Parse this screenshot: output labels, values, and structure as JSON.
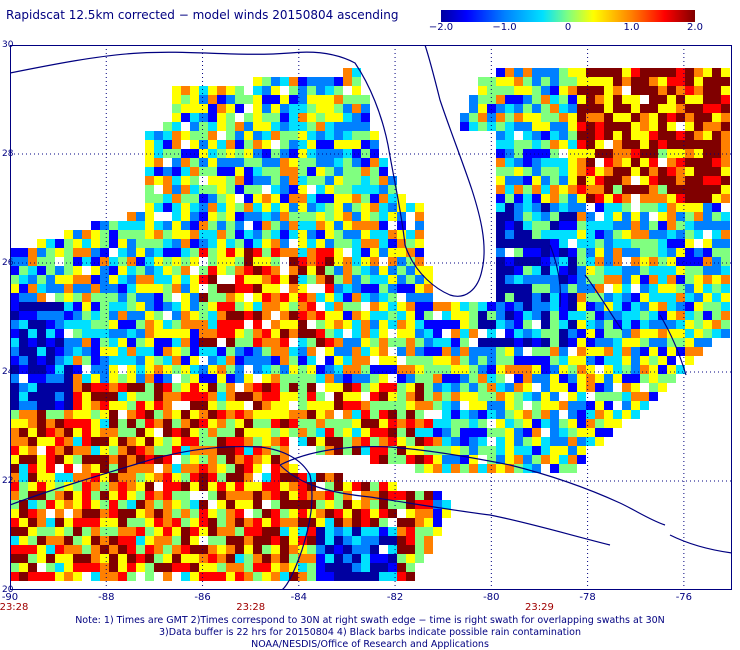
{
  "title": "Rapidscat 12.5km corrected − model winds 20150804 ascending",
  "colorbar": {
    "ticks": [
      "−2.0",
      "−1.0",
      "0",
      "1.0",
      "2.0"
    ],
    "tick_values": [
      -2.0,
      -1.0,
      0,
      1.0,
      2.0
    ],
    "range": [
      -2.0,
      2.0
    ],
    "colors": [
      "#0000a0",
      "#0000ff",
      "#0080ff",
      "#00e0ff",
      "#80ff80",
      "#ffff00",
      "#ff8000",
      "#ff0000",
      "#800000"
    ]
  },
  "axes": {
    "lon_ticks": [
      "-90",
      "-88",
      "-86",
      "-84",
      "-82",
      "-80",
      "-78",
      "-76"
    ],
    "lon_values": [
      -90,
      -88,
      -86,
      -84,
      -82,
      -80,
      -78,
      -76
    ],
    "lat_ticks": [
      "20",
      "22",
      "24",
      "26",
      "28",
      "30"
    ],
    "lat_values": [
      20,
      22,
      24,
      26,
      28,
      30
    ],
    "lon_range": [
      -90,
      -75
    ],
    "lat_range": [
      20,
      30
    ]
  },
  "times": [
    {
      "label": "23:28",
      "lon": -90
    },
    {
      "label": "23:28",
      "lon": -85
    },
    {
      "label": "23:29",
      "lon": -79
    }
  ],
  "notes": [
    "Note: 1) Times are GMT 2)Times correspond to 30N at right swath edge − time is right swath for overlapping swaths at 30N",
    "3)Data buffer is 22 hrs for 20150804 4) Black barbs indicate possible rain contamination",
    "NOAA/NESDIS/Office of Research and Applications"
  ],
  "colors": {
    "coast": "#000080",
    "grid": "#000080"
  }
}
